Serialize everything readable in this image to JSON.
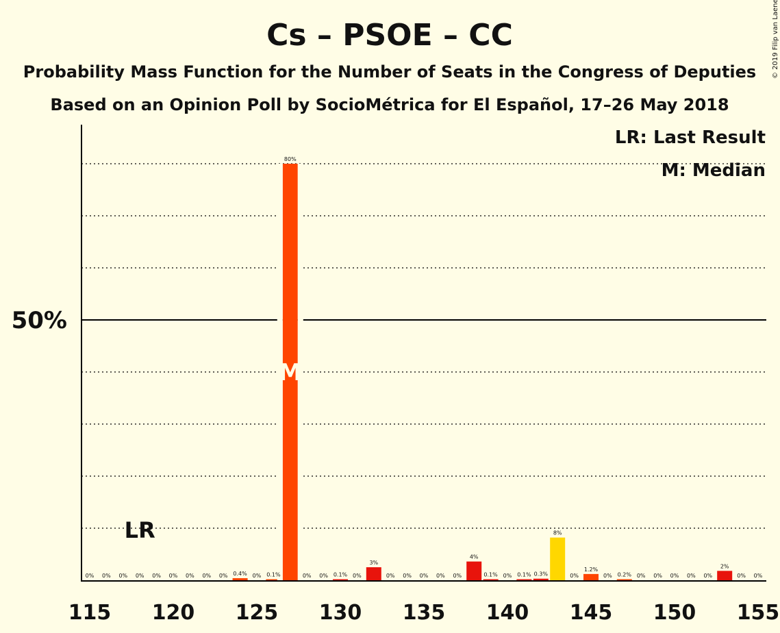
{
  "chart_data": {
    "type": "bar",
    "title": "Cs – PSOE – CC",
    "subtitle": "Probability Mass Function for the Number of Seats in the Congress of Deputies",
    "subtitle2": "Based on an Opinion Poll by SocioMétrica for El Español, 17–26 May 2018",
    "copyright": "© 2019 Filip van Laenen",
    "legend": {
      "lr": "LR: Last Result",
      "median": "M: Median"
    },
    "xlim": [
      115,
      155
    ],
    "ylim": [
      0,
      87.5
    ],
    "x_ticks": [
      115,
      120,
      125,
      130,
      135,
      140,
      145,
      150,
      155
    ],
    "y_major": {
      "value": 50,
      "label": "50%"
    },
    "y_gridlines": [
      10,
      20,
      30,
      40,
      60,
      70,
      80
    ],
    "last_result": {
      "seat": 118,
      "label": "LR"
    },
    "median": {
      "seat": 127,
      "label": "M"
    },
    "colors": {
      "Cs": "#FF4500",
      "PSOE": "#E8140C",
      "CC": "#FFD700",
      "background": "#FFFDE6"
    },
    "bars": [
      {
        "seat": 115,
        "value": 0,
        "label": "0%",
        "party": "Cs"
      },
      {
        "seat": 116,
        "value": 0,
        "label": "0%",
        "party": "Cs"
      },
      {
        "seat": 117,
        "value": 0,
        "label": "0%",
        "party": "Cs"
      },
      {
        "seat": 118,
        "value": 0,
        "label": "0%",
        "party": "Cs"
      },
      {
        "seat": 119,
        "value": 0,
        "label": "0%",
        "party": "Cs"
      },
      {
        "seat": 120,
        "value": 0,
        "label": "0%",
        "party": "Cs"
      },
      {
        "seat": 121,
        "value": 0,
        "label": "0%",
        "party": "Cs"
      },
      {
        "seat": 122,
        "value": 0,
        "label": "0%",
        "party": "Cs"
      },
      {
        "seat": 123,
        "value": 0,
        "label": "0%",
        "party": "Cs"
      },
      {
        "seat": 124,
        "value": 0.4,
        "label": "0.4%",
        "party": "Cs"
      },
      {
        "seat": 125,
        "value": 0,
        "label": "0%",
        "party": "Cs"
      },
      {
        "seat": 126,
        "value": 0.1,
        "label": "0.1%",
        "party": "Cs"
      },
      {
        "seat": 127,
        "value": 80,
        "label": "80%",
        "party": "Cs"
      },
      {
        "seat": 128,
        "value": 0,
        "label": "0%",
        "party": "Cs"
      },
      {
        "seat": 129,
        "value": 0,
        "label": "0%",
        "party": "Cs"
      },
      {
        "seat": 130,
        "value": 0.1,
        "label": "0.1%",
        "party": "PSOE"
      },
      {
        "seat": 131,
        "value": 0,
        "label": "0%",
        "party": "PSOE"
      },
      {
        "seat": 132,
        "value": 2.5,
        "label": "3%",
        "party": "PSOE"
      },
      {
        "seat": 133,
        "value": 0,
        "label": "0%",
        "party": "PSOE"
      },
      {
        "seat": 134,
        "value": 0,
        "label": "0%",
        "party": "PSOE"
      },
      {
        "seat": 135,
        "value": 0,
        "label": "0%",
        "party": "PSOE"
      },
      {
        "seat": 136,
        "value": 0,
        "label": "0%",
        "party": "PSOE"
      },
      {
        "seat": 137,
        "value": 0,
        "label": "0%",
        "party": "PSOE"
      },
      {
        "seat": 138,
        "value": 3.6,
        "label": "4%",
        "party": "PSOE"
      },
      {
        "seat": 139,
        "value": 0.1,
        "label": "0.1%",
        "party": "PSOE"
      },
      {
        "seat": 140,
        "value": 0,
        "label": "0%",
        "party": "PSOE"
      },
      {
        "seat": 141,
        "value": 0.1,
        "label": "0.1%",
        "party": "PSOE"
      },
      {
        "seat": 142,
        "value": 0.3,
        "label": "0.3%",
        "party": "PSOE"
      },
      {
        "seat": 143,
        "value": 8.2,
        "label": "8%",
        "party": "CC"
      },
      {
        "seat": 144,
        "value": 0,
        "label": "0%",
        "party": "Cs"
      },
      {
        "seat": 145,
        "value": 1.2,
        "label": "1.2%",
        "party": "Cs"
      },
      {
        "seat": 146,
        "value": 0,
        "label": "0%",
        "party": "Cs"
      },
      {
        "seat": 147,
        "value": 0.2,
        "label": "0.2%",
        "party": "Cs"
      },
      {
        "seat": 148,
        "value": 0,
        "label": "0%",
        "party": "Cs"
      },
      {
        "seat": 149,
        "value": 0,
        "label": "0%",
        "party": "Cs"
      },
      {
        "seat": 150,
        "value": 0,
        "label": "0%",
        "party": "Cs"
      },
      {
        "seat": 151,
        "value": 0,
        "label": "0%",
        "party": "Cs"
      },
      {
        "seat": 152,
        "value": 0,
        "label": "0%",
        "party": "Cs"
      },
      {
        "seat": 153,
        "value": 1.8,
        "label": "2%",
        "party": "PSOE"
      },
      {
        "seat": 154,
        "value": 0,
        "label": "0%",
        "party": "PSOE"
      },
      {
        "seat": 155,
        "value": 0,
        "label": "0%",
        "party": "PSOE"
      }
    ]
  }
}
